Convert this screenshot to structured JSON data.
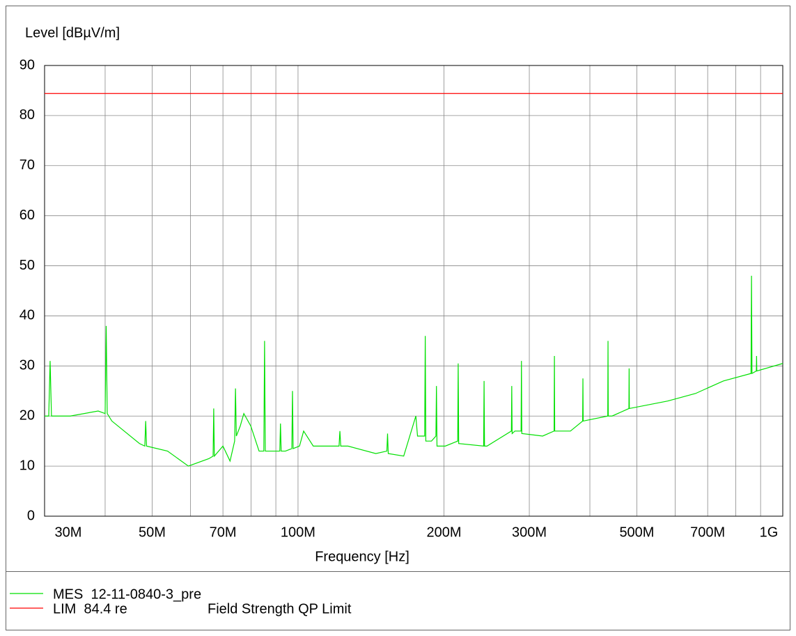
{
  "chart_data": {
    "type": "line",
    "title": "Level [dBµV/m]",
    "x_label": "Frequency [Hz]",
    "log_x": true,
    "grid": true,
    "xlim": [
      30000000,
      1000000000
    ],
    "ylim": [
      0,
      90
    ],
    "yticks": [
      0,
      10,
      20,
      30,
      40,
      50,
      60,
      70,
      80,
      90
    ],
    "xticks": [
      {
        "value": 30000000,
        "label": "30M"
      },
      {
        "value": 50000000,
        "label": "50M"
      },
      {
        "value": 70000000,
        "label": "70M"
      },
      {
        "value": 100000000,
        "label": "100M"
      },
      {
        "value": 200000000,
        "label": "200M"
      },
      {
        "value": 300000000,
        "label": "300M"
      },
      {
        "value": 500000000,
        "label": "500M"
      },
      {
        "value": 700000000,
        "label": "700M"
      },
      {
        "value": 1000000000,
        "label": "1G"
      }
    ],
    "xminor": [
      40000000,
      60000000,
      80000000,
      90000000,
      400000000,
      600000000,
      800000000,
      900000000
    ],
    "legend_note": "Field Strength QP Limit",
    "series": [
      {
        "name": "MES  12-11-0840-3_pre",
        "color": "#00e000",
        "x": [
          30000000,
          30600000,
          30800000,
          31000000,
          33900000,
          38700000,
          40000000,
          40200000,
          40400000,
          41300000,
          47100000,
          48300000,
          48500000,
          48700000,
          53800000,
          59400000,
          65500000,
          66800000,
          67000000,
          67200000,
          70000000,
          72400000,
          74000000,
          74300000,
          74600000,
          76000000,
          77300000,
          79900000,
          83100000,
          85000000,
          85300000,
          85600000,
          91700000,
          92000000,
          92300000,
          94200000,
          97100000,
          97400000,
          97700000,
          100700000,
          102700000,
          107500000,
          121500000,
          122000000,
          122500000,
          126800000,
          144700000,
          152500000,
          153000000,
          153500000,
          165200000,
          175000000,
          176400000,
          182500000,
          183000000,
          183500000,
          188500000,
          192500000,
          193000000,
          193500000,
          201300000,
          213500000,
          214000000,
          214500000,
          241500000,
          242000000,
          242500000,
          245400000,
          275500000,
          276000000,
          276500000,
          280100000,
          288500000,
          289000000,
          289500000,
          319600000,
          337500000,
          338000000,
          338500000,
          364700000,
          386500000,
          387000000,
          387500000,
          435500000,
          436000000,
          436500000,
          444600000,
          481500000,
          482000000,
          482500000,
          578900000,
          660700000,
          754000000,
          860000000,
          862000000,
          864000000,
          882000000,
          883000000,
          884000000,
          1000000000
        ],
        "values": [
          20,
          20,
          31,
          20,
          20,
          21,
          20.5,
          38,
          20.5,
          19,
          14.5,
          14,
          19,
          14,
          13,
          10,
          11.5,
          12,
          21.5,
          12,
          14,
          11,
          15,
          25.5,
          16,
          18,
          20.5,
          18,
          13,
          13,
          35,
          13,
          13,
          18.5,
          13,
          13,
          13.5,
          25,
          13.5,
          14,
          17,
          14,
          14,
          17,
          14,
          14,
          12.5,
          13,
          16.5,
          12.5,
          12,
          20,
          16,
          16,
          36,
          15,
          15,
          16,
          26,
          14,
          14,
          15,
          30.5,
          14.5,
          14,
          27,
          14,
          14,
          17,
          26,
          16.5,
          17,
          17,
          31,
          16.5,
          16,
          17,
          32,
          17,
          17,
          19,
          27.5,
          19,
          20,
          35,
          20,
          20,
          21.5,
          29.5,
          21.5,
          23,
          24.5,
          27,
          28.5,
          48,
          28.5,
          29,
          32,
          29,
          30.5
        ]
      },
      {
        "name": "LIM  84.4 re",
        "color": "#ff0000",
        "x": [
          30000000,
          1000000000
        ],
        "values": [
          84.4,
          84.4
        ]
      }
    ]
  }
}
